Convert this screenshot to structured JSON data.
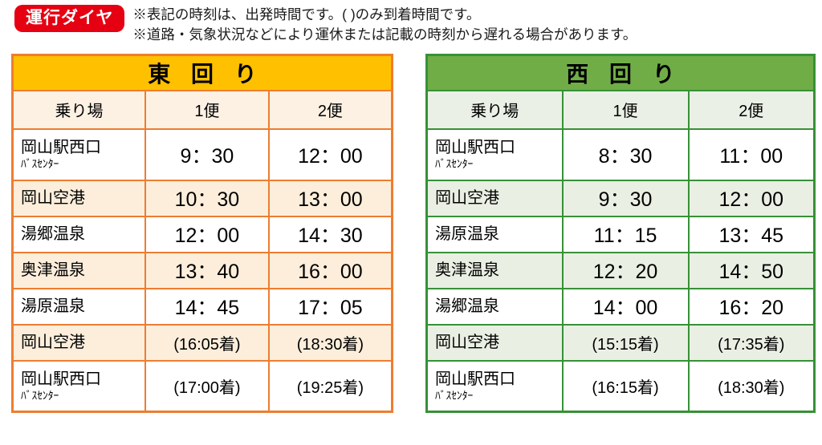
{
  "badge": {
    "label": "運行ダイヤ",
    "bg": "#e50012",
    "text_color": "#ffffff"
  },
  "notes": [
    "※表記の時刻は、出発時間です。( )のみ到着時間です。",
    "※道路・気象状況などにより運休または記載の時刻から遅れる場合があります。"
  ],
  "tables": [
    {
      "id": "east",
      "title": "東 回 り",
      "theme": {
        "header_bg": "#FFC000",
        "border": "#ED7D31",
        "subheader_bg": "#FDF1E3",
        "alt_row_bg": "#FCEEDB",
        "row_bg": "#FFFFFF"
      },
      "columns": [
        "乗り場",
        "1便",
        "2便"
      ],
      "rows": [
        {
          "stop": "岡山駅西口",
          "stop_sub": "ﾊﾞｽｾﾝﾀｰ",
          "times": [
            "9：30",
            "12：00"
          ],
          "arrival": false
        },
        {
          "stop": "岡山空港",
          "stop_sub": "",
          "times": [
            "10：30",
            "13：00"
          ],
          "arrival": false
        },
        {
          "stop": "湯郷温泉",
          "stop_sub": "",
          "times": [
            "12：00",
            "14：30"
          ],
          "arrival": false
        },
        {
          "stop": "奥津温泉",
          "stop_sub": "",
          "times": [
            "13：40",
            "16：00"
          ],
          "arrival": false
        },
        {
          "stop": "湯原温泉",
          "stop_sub": "",
          "times": [
            "14：45",
            "17：05"
          ],
          "arrival": false
        },
        {
          "stop": "岡山空港",
          "stop_sub": "",
          "times": [
            "(16:05着)",
            "(18:30着)"
          ],
          "arrival": true
        },
        {
          "stop": "岡山駅西口",
          "stop_sub": "ﾊﾞｽｾﾝﾀｰ",
          "times": [
            "(17:00着)",
            "(19:25着)"
          ],
          "arrival": true
        }
      ]
    },
    {
      "id": "west",
      "title": "西 回 り",
      "theme": {
        "header_bg": "#70AD47",
        "border": "#379137",
        "subheader_bg": "#EAF0E5",
        "alt_row_bg": "#E9EFE3",
        "row_bg": "#FFFFFF"
      },
      "columns": [
        "乗り場",
        "1便",
        "2便"
      ],
      "rows": [
        {
          "stop": "岡山駅西口",
          "stop_sub": "ﾊﾞｽｾﾝﾀｰ",
          "times": [
            "8：30",
            "11：00"
          ],
          "arrival": false
        },
        {
          "stop": "岡山空港",
          "stop_sub": "",
          "times": [
            "9：30",
            "12：00"
          ],
          "arrival": false
        },
        {
          "stop": "湯原温泉",
          "stop_sub": "",
          "times": [
            "11：15",
            "13：45"
          ],
          "arrival": false
        },
        {
          "stop": "奥津温泉",
          "stop_sub": "",
          "times": [
            "12：20",
            "14：50"
          ],
          "arrival": false
        },
        {
          "stop": "湯郷温泉",
          "stop_sub": "",
          "times": [
            "14：00",
            "16：20"
          ],
          "arrival": false
        },
        {
          "stop": "岡山空港",
          "stop_sub": "",
          "times": [
            "(15:15着)",
            "(17:35着)"
          ],
          "arrival": true
        },
        {
          "stop": "岡山駅西口",
          "stop_sub": "ﾊﾞｽｾﾝﾀｰ",
          "times": [
            "(16:15着)",
            "(18:30着)"
          ],
          "arrival": true
        }
      ]
    }
  ]
}
